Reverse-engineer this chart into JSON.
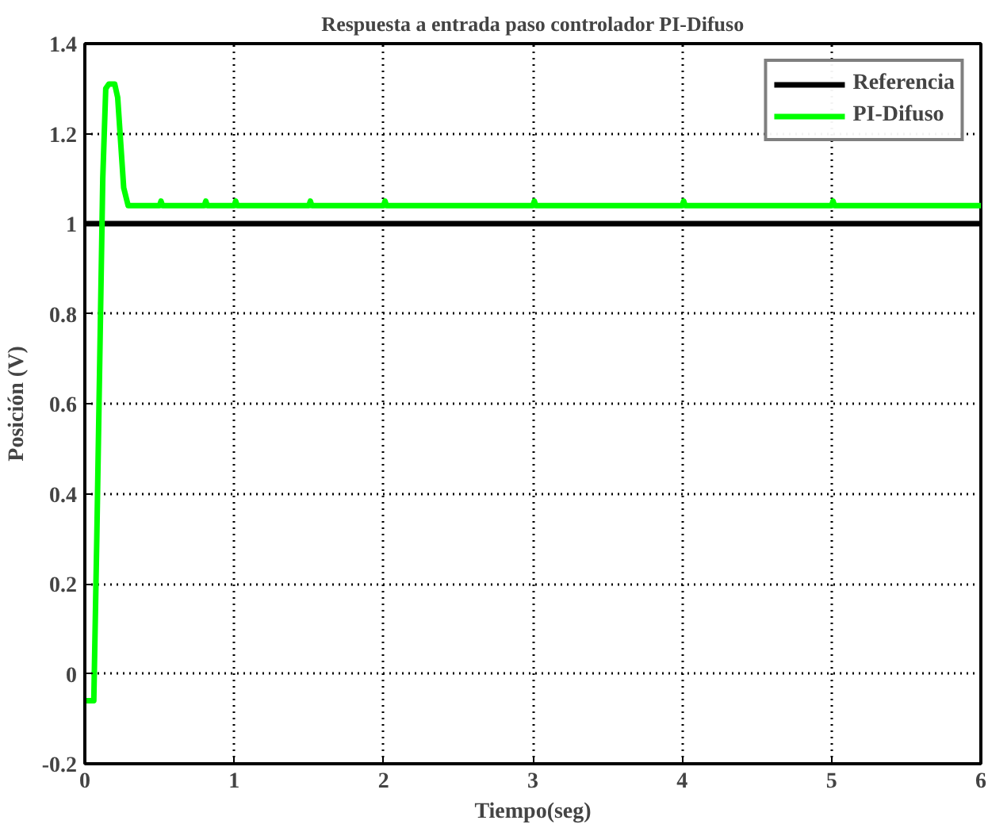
{
  "chart_data": {
    "type": "line",
    "title": "Respuesta a entrada paso controlador PI-Difuso",
    "xlabel": "Tiempo(seg)",
    "ylabel": "Posición (V)",
    "xlim": [
      0,
      6
    ],
    "ylim": [
      -0.2,
      1.4
    ],
    "xticks": [
      0,
      1,
      2,
      3,
      4,
      5,
      6
    ],
    "yticks": [
      -0.2,
      0,
      0.2,
      0.4,
      0.6,
      0.8,
      1,
      1.2,
      1.4
    ],
    "grid": true,
    "legend": "top right",
    "line_style": "solid",
    "series": [
      {
        "name": "Referencia",
        "color": "#000000",
        "x": [
          0,
          6
        ],
        "values": [
          1,
          1
        ]
      },
      {
        "name": "PI-Difuso",
        "color": "#00ff00",
        "x": [
          0,
          0.06,
          0.08,
          0.1,
          0.12,
          0.14,
          0.16,
          0.2,
          0.22,
          0.24,
          0.26,
          0.29,
          0.5,
          0.51,
          0.52,
          0.8,
          0.81,
          0.82,
          1.0,
          1.01,
          1.02,
          1.5,
          1.51,
          1.52,
          2.0,
          2.01,
          2.02,
          3.0,
          3.01,
          3.02,
          4.0,
          4.01,
          4.02,
          5.0,
          5.01,
          5.02,
          6
        ],
        "values": [
          -0.06,
          -0.06,
          0.3,
          0.7,
          1.1,
          1.3,
          1.31,
          1.31,
          1.28,
          1.18,
          1.08,
          1.04,
          1.04,
          1.05,
          1.04,
          1.04,
          1.05,
          1.04,
          1.04,
          1.05,
          1.04,
          1.04,
          1.05,
          1.04,
          1.04,
          1.05,
          1.04,
          1.04,
          1.05,
          1.04,
          1.04,
          1.05,
          1.04,
          1.04,
          1.05,
          1.04,
          1.04
        ]
      }
    ]
  }
}
